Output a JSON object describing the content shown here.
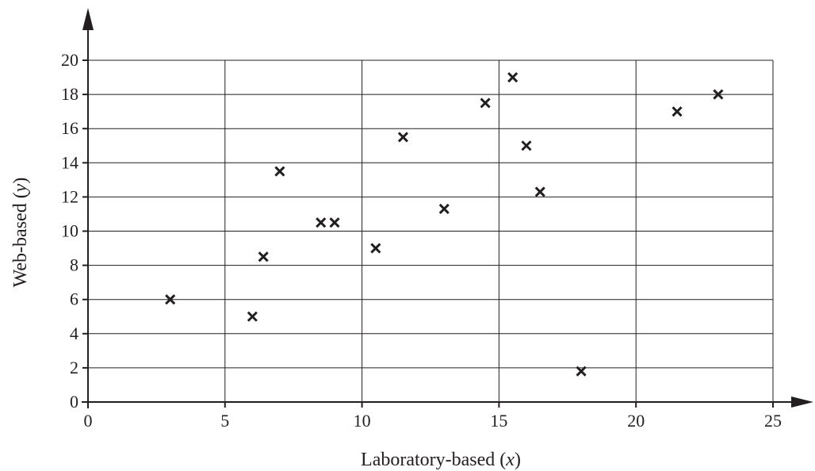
{
  "chart_data": {
    "type": "scatter",
    "title": "",
    "xlabel": {
      "text": "Laboratory-based (",
      "var": "x",
      "close": ")"
    },
    "ylabel": {
      "text": "Web-based (",
      "var": "y",
      "close": ")"
    },
    "xlim": [
      0,
      25
    ],
    "ylim": [
      0,
      20
    ],
    "xticks": [
      0,
      5,
      10,
      15,
      20,
      25
    ],
    "yticks": [
      0,
      2,
      4,
      6,
      8,
      10,
      12,
      14,
      16,
      18,
      20
    ],
    "grid": true,
    "marker": "x",
    "points": [
      {
        "x": 3,
        "y": 6
      },
      {
        "x": 6,
        "y": 5
      },
      {
        "x": 6.4,
        "y": 8.5
      },
      {
        "x": 7,
        "y": 13.5
      },
      {
        "x": 8.5,
        "y": 10.5
      },
      {
        "x": 9,
        "y": 10.5
      },
      {
        "x": 10.5,
        "y": 9
      },
      {
        "x": 11.5,
        "y": 15.5
      },
      {
        "x": 13,
        "y": 11.3
      },
      {
        "x": 14.5,
        "y": 17.5
      },
      {
        "x": 15.5,
        "y": 19
      },
      {
        "x": 16,
        "y": 15
      },
      {
        "x": 16.5,
        "y": 12.3
      },
      {
        "x": 18,
        "y": 1.8
      },
      {
        "x": 21.5,
        "y": 17
      },
      {
        "x": 23,
        "y": 18
      }
    ],
    "colors": {
      "ink": "#231f20",
      "grid": "#231f20"
    }
  }
}
